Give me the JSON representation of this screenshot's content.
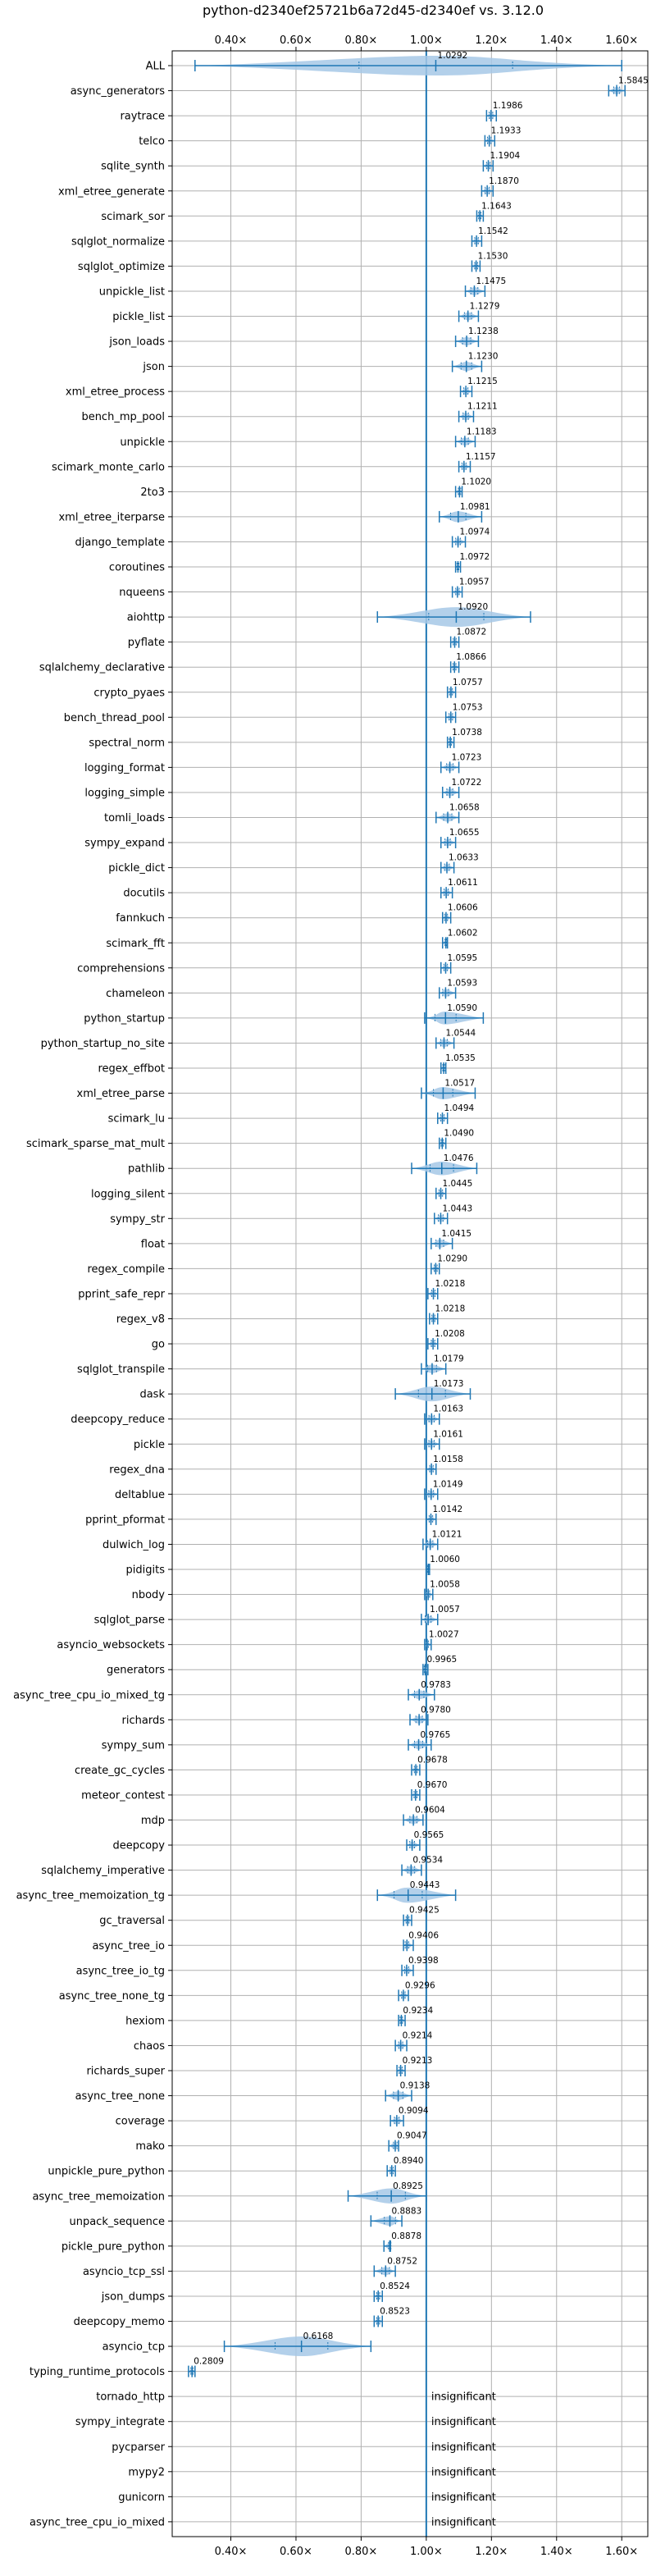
{
  "chart_data": {
    "type": "violin",
    "title": "python-d2340ef25721b6a72d45-d2340ef vs. 3.12.0",
    "orientation": "horizontal",
    "xlim": [
      0.22,
      1.68
    ],
    "xticks": [
      0.4,
      0.6,
      0.8,
      1.0,
      1.2,
      1.4,
      1.6
    ],
    "xtick_labels": [
      "0.40×",
      "0.60×",
      "0.80×",
      "1.00×",
      "1.20×",
      "1.40×",
      "1.60×"
    ],
    "xtick_positions": [
      "top",
      "bottom"
    ],
    "reference_line": 1.0,
    "grid": true,
    "colors": {
      "violin_fill": "#a6c8e6",
      "line": "#1f77b4",
      "reference": "#1f77b4"
    },
    "insignificant_label": "insignificant",
    "categories": [
      "ALL",
      "async_generators",
      "raytrace",
      "telco",
      "sqlite_synth",
      "xml_etree_generate",
      "scimark_sor",
      "sqlglot_normalize",
      "sqlglot_optimize",
      "unpickle_list",
      "pickle_list",
      "json_loads",
      "json",
      "xml_etree_process",
      "bench_mp_pool",
      "unpickle",
      "scimark_monte_carlo",
      "2to3",
      "xml_etree_iterparse",
      "django_template",
      "coroutines",
      "nqueens",
      "aiohttp",
      "pyflate",
      "sqlalchemy_declarative",
      "crypto_pyaes",
      "bench_thread_pool",
      "spectral_norm",
      "logging_format",
      "logging_simple",
      "tomli_loads",
      "sympy_expand",
      "pickle_dict",
      "docutils",
      "fannkuch",
      "scimark_fft",
      "comprehensions",
      "chameleon",
      "python_startup",
      "python_startup_no_site",
      "regex_effbot",
      "xml_etree_parse",
      "scimark_lu",
      "scimark_sparse_mat_mult",
      "pathlib",
      "logging_silent",
      "sympy_str",
      "float",
      "regex_compile",
      "pprint_safe_repr",
      "regex_v8",
      "go",
      "sqlglot_transpile",
      "dask",
      "deepcopy_reduce",
      "pickle",
      "regex_dna",
      "deltablue",
      "pprint_pformat",
      "dulwich_log",
      "pidigits",
      "nbody",
      "sqlglot_parse",
      "asyncio_websockets",
      "generators",
      "async_tree_cpu_io_mixed_tg",
      "richards",
      "sympy_sum",
      "create_gc_cycles",
      "meteor_contest",
      "mdp",
      "deepcopy",
      "sqlalchemy_imperative",
      "async_tree_memoization_tg",
      "gc_traversal",
      "async_tree_io",
      "async_tree_io_tg",
      "async_tree_none_tg",
      "hexiom",
      "chaos",
      "richards_super",
      "async_tree_none",
      "coverage",
      "mako",
      "unpickle_pure_python",
      "async_tree_memoization",
      "unpack_sequence",
      "pickle_pure_python",
      "asyncio_tcp_ssl",
      "json_dumps",
      "deepcopy_memo",
      "asyncio_tcp",
      "typing_runtime_protocols",
      "tornado_http",
      "sympy_integrate",
      "pycparser",
      "mypy2",
      "gunicorn",
      "async_tree_cpu_io_mixed"
    ],
    "values": [
      1.0292,
      1.5845,
      1.1986,
      1.1933,
      1.1904,
      1.187,
      1.1643,
      1.1542,
      1.153,
      1.1475,
      1.1279,
      1.1238,
      1.123,
      1.1215,
      1.1211,
      1.1183,
      1.1157,
      1.102,
      1.0981,
      1.0974,
      1.0972,
      1.0957,
      1.092,
      1.0872,
      1.0866,
      1.0757,
      1.0753,
      1.0738,
      1.0723,
      1.0722,
      1.0658,
      1.0655,
      1.0633,
      1.0611,
      1.0606,
      1.0602,
      1.0595,
      1.0593,
      1.059,
      1.0544,
      1.0535,
      1.0517,
      1.0494,
      1.049,
      1.0476,
      1.0445,
      1.0443,
      1.0415,
      1.029,
      1.0218,
      1.0218,
      1.0208,
      1.0179,
      1.0173,
      1.0163,
      1.0161,
      1.0158,
      1.0149,
      1.0142,
      1.0121,
      1.006,
      1.0058,
      1.0057,
      1.0027,
      0.9965,
      0.9783,
      0.978,
      0.9765,
      0.9678,
      0.967,
      0.9604,
      0.9565,
      0.9534,
      0.9443,
      0.9425,
      0.9406,
      0.9398,
      0.9296,
      0.9234,
      0.9214,
      0.9213,
      0.9138,
      0.9094,
      0.9047,
      0.894,
      0.8925,
      0.8883,
      0.8878,
      0.8752,
      0.8524,
      0.8523,
      0.6168,
      0.2809,
      null,
      null,
      null,
      null,
      null,
      null
    ],
    "value_labels": [
      "1.0292",
      "1.5845",
      "1.1986",
      "1.1933",
      "1.1904",
      "1.1870",
      "1.1643",
      "1.1542",
      "1.1530",
      "1.1475",
      "1.1279",
      "1.1238",
      "1.1230",
      "1.1215",
      "1.1211",
      "1.1183",
      "1.1157",
      "1.1020",
      "1.0981",
      "1.0974",
      "1.0972",
      "1.0957",
      "1.0920",
      "1.0872",
      "1.0866",
      "1.0757",
      "1.0753",
      "1.0738",
      "1.0723",
      "1.0722",
      "1.0658",
      "1.0655",
      "1.0633",
      "1.0611",
      "1.0606",
      "1.0602",
      "1.0595",
      "1.0593",
      "1.0590",
      "1.0544",
      "1.0535",
      "1.0517",
      "1.0494",
      "1.0490",
      "1.0476",
      "1.0445",
      "1.0443",
      "1.0415",
      "1.0290",
      "1.0218",
      "1.0218",
      "1.0208",
      "1.0179",
      "1.0173",
      "1.0163",
      "1.0161",
      "1.0158",
      "1.0149",
      "1.0142",
      "1.0121",
      "1.0060",
      "1.0058",
      "1.0057",
      "1.0027",
      "0.9965",
      "0.9783",
      "0.9780",
      "0.9765",
      "0.9678",
      "0.9670",
      "0.9604",
      "0.9565",
      "0.9534",
      "0.9443",
      "0.9425",
      "0.9406",
      "0.9398",
      "0.9296",
      "0.9234",
      "0.9214",
      "0.9213",
      "0.9138",
      "0.9094",
      "0.9047",
      "0.8940",
      "0.8925",
      "0.8883",
      "0.8878",
      "0.8752",
      "0.8524",
      "0.8523",
      "0.6168",
      "0.2809",
      "",
      "",
      "",
      "",
      "",
      ""
    ],
    "ranges": [
      [
        0.29,
        1.6
      ],
      [
        1.56,
        1.61
      ],
      [
        1.185,
        1.215
      ],
      [
        1.18,
        1.21
      ],
      [
        1.175,
        1.205
      ],
      [
        1.17,
        1.205
      ],
      [
        1.155,
        1.175
      ],
      [
        1.14,
        1.17
      ],
      [
        1.14,
        1.165
      ],
      [
        1.12,
        1.18
      ],
      [
        1.1,
        1.16
      ],
      [
        1.09,
        1.16
      ],
      [
        1.08,
        1.17
      ],
      [
        1.105,
        1.14
      ],
      [
        1.1,
        1.145
      ],
      [
        1.09,
        1.15
      ],
      [
        1.1,
        1.135
      ],
      [
        1.09,
        1.11
      ],
      [
        1.04,
        1.17
      ],
      [
        1.08,
        1.12
      ],
      [
        1.09,
        1.105
      ],
      [
        1.08,
        1.11
      ],
      [
        0.85,
        1.32
      ],
      [
        1.075,
        1.1
      ],
      [
        1.075,
        1.1
      ],
      [
        1.065,
        1.09
      ],
      [
        1.06,
        1.09
      ],
      [
        1.065,
        1.085
      ],
      [
        1.045,
        1.1
      ],
      [
        1.05,
        1.1
      ],
      [
        1.03,
        1.1
      ],
      [
        1.045,
        1.09
      ],
      [
        1.045,
        1.085
      ],
      [
        1.045,
        1.08
      ],
      [
        1.05,
        1.075
      ],
      [
        1.05,
        1.065
      ],
      [
        1.045,
        1.075
      ],
      [
        1.04,
        1.09
      ],
      [
        0.995,
        1.175
      ],
      [
        1.03,
        1.085
      ],
      [
        1.045,
        1.06
      ],
      [
        0.985,
        1.15
      ],
      [
        1.035,
        1.065
      ],
      [
        1.04,
        1.06
      ],
      [
        0.955,
        1.155
      ],
      [
        1.03,
        1.06
      ],
      [
        1.025,
        1.065
      ],
      [
        1.015,
        1.08
      ],
      [
        1.015,
        1.04
      ],
      [
        1.005,
        1.035
      ],
      [
        1.01,
        1.035
      ],
      [
        1.005,
        1.035
      ],
      [
        0.985,
        1.06
      ],
      [
        0.905,
        1.135
      ],
      [
        0.995,
        1.04
      ],
      [
        0.995,
        1.04
      ],
      [
        1.0,
        1.03
      ],
      [
        0.995,
        1.035
      ],
      [
        1.0,
        1.03
      ],
      [
        0.99,
        1.035
      ],
      [
        1.0,
        1.01
      ],
      [
        0.995,
        1.02
      ],
      [
        0.985,
        1.035
      ],
      [
        0.995,
        1.015
      ],
      [
        0.99,
        1.005
      ],
      [
        0.945,
        1.025
      ],
      [
        0.95,
        1.005
      ],
      [
        0.945,
        1.015
      ],
      [
        0.955,
        0.98
      ],
      [
        0.955,
        0.98
      ],
      [
        0.93,
        0.99
      ],
      [
        0.94,
        0.98
      ],
      [
        0.925,
        0.985
      ],
      [
        0.85,
        1.09
      ],
      [
        0.93,
        0.955
      ],
      [
        0.93,
        0.96
      ],
      [
        0.925,
        0.96
      ],
      [
        0.915,
        0.945
      ],
      [
        0.915,
        0.935
      ],
      [
        0.905,
        0.94
      ],
      [
        0.91,
        0.935
      ],
      [
        0.875,
        0.955
      ],
      [
        0.89,
        0.93
      ],
      [
        0.885,
        0.915
      ],
      [
        0.88,
        0.905
      ],
      [
        0.76,
        1.0
      ],
      [
        0.83,
        0.925
      ],
      [
        0.87,
        0.89
      ],
      [
        0.84,
        0.905
      ],
      [
        0.84,
        0.865
      ],
      [
        0.84,
        0.865
      ],
      [
        0.38,
        0.83
      ],
      [
        0.27,
        0.29
      ],
      null,
      null,
      null,
      null,
      null,
      null
    ]
  }
}
